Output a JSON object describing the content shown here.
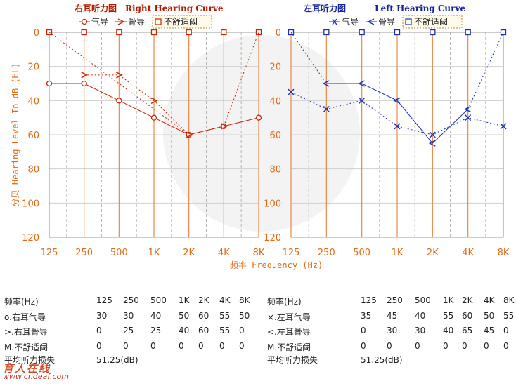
{
  "chart_data": [
    {
      "type": "line",
      "title": "右耳听力图",
      "title_en": "Right Hearing Curve",
      "legend": [
        "气导",
        "骨导",
        "不舒适阈"
      ],
      "categories": [
        "125",
        "250",
        "500",
        "1K",
        "2K",
        "4K",
        "8K"
      ],
      "ylim": [
        0,
        120
      ],
      "yticks": [
        0,
        20,
        40,
        60,
        80,
        100,
        120
      ],
      "ylabel": "分贝 Hearing Level In dB (HL)",
      "xlabel": "频率 Frequency (Hz)",
      "series": [
        {
          "name": "气导",
          "values": [
            30,
            30,
            40,
            50,
            60,
            55,
            50
          ]
        },
        {
          "name": "骨导",
          "values": [
            null,
            25,
            25,
            40,
            60,
            55,
            null
          ]
        },
        {
          "name": "不舒适阈",
          "values": [
            0,
            0,
            0,
            0,
            0,
            0,
            0
          ]
        }
      ]
    },
    {
      "type": "line",
      "title": "左耳听力图",
      "title_en": "Left Hearing Curve",
      "legend": [
        "气导",
        "骨导",
        "不舒适阈"
      ],
      "categories": [
        "125",
        "250",
        "500",
        "1K",
        "2K",
        "4K",
        "8K"
      ],
      "ylim": [
        0,
        120
      ],
      "yticks": [
        0,
        20,
        40,
        60,
        80,
        100,
        120
      ],
      "xlabel": "频率 Frequency (Hz)",
      "series": [
        {
          "name": "气导",
          "values": [
            35,
            45,
            40,
            55,
            60,
            50,
            55
          ]
        },
        {
          "name": "骨导",
          "values": [
            null,
            30,
            30,
            40,
            65,
            45,
            null
          ]
        },
        {
          "name": "不舒适阈",
          "values": [
            0,
            0,
            0,
            0,
            0,
            0,
            0
          ]
        }
      ]
    }
  ],
  "colors": {
    "right": "#cc2200",
    "right_vline": "#e8894a",
    "left": "#1a2fb8",
    "left_vline": "#e8894a",
    "grid": "#bbbbbb",
    "axis_text": "#e06a18"
  },
  "tables": {
    "right": {
      "header_label": "频率(Hz)",
      "freqs": [
        "125",
        "250",
        "500",
        "1K",
        "2K",
        "4K",
        "8K"
      ],
      "rows": [
        {
          "label": "o.右耳气导",
          "values": [
            "30",
            "30",
            "40",
            "50",
            "60",
            "55",
            "50"
          ]
        },
        {
          "label": ">.右耳骨导",
          "values": [
            "0",
            "25",
            "25",
            "40",
            "60",
            "55",
            "0"
          ]
        },
        {
          "label": "M.不舒适阈",
          "values": [
            "0",
            "0",
            "0",
            "0",
            "0",
            "0",
            "0"
          ]
        }
      ],
      "avg_label": "平均听力损失",
      "avg_value": "51.25(dB)"
    },
    "left": {
      "header_label": "频率(Hz)",
      "freqs": [
        "125",
        "250",
        "500",
        "1K",
        "2K",
        "4K",
        "8K"
      ],
      "rows": [
        {
          "label": "×.左耳气导",
          "values": [
            "35",
            "45",
            "40",
            "55",
            "60",
            "50",
            "55"
          ]
        },
        {
          "label": "<.左耳骨导",
          "values": [
            "0",
            "30",
            "30",
            "40",
            "65",
            "45",
            "0"
          ]
        },
        {
          "label": "M.不舒适阈",
          "values": [
            "0",
            "0",
            "0",
            "0",
            "0",
            "0",
            "0"
          ]
        }
      ],
      "avg_label": "平均听力损失",
      "avg_value": "51.25(dB)"
    }
  },
  "watermark": {
    "logo": "育人在线",
    "site": "www.cndeaf.com"
  }
}
